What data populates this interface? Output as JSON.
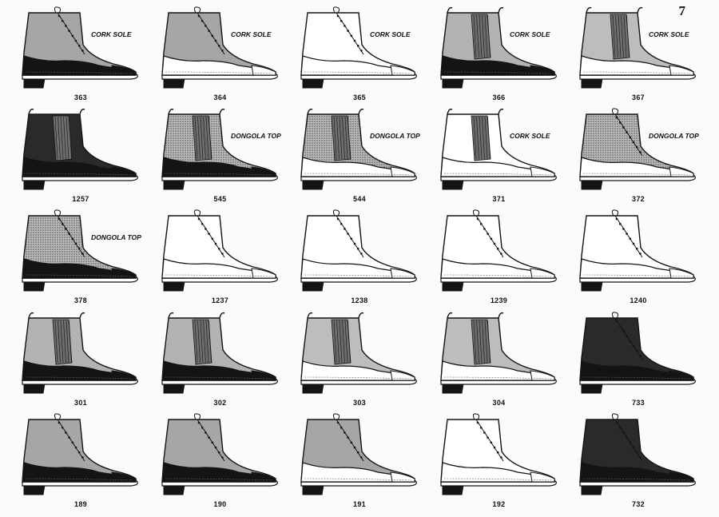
{
  "page_number": "7",
  "shoes": [
    {
      "number": "363",
      "style": "lace-dark-foxing",
      "stamp": "CORK SOLE"
    },
    {
      "number": "364",
      "style": "lace-light-foxing",
      "stamp": "CORK SOLE"
    },
    {
      "number": "365",
      "style": "lace-all-light",
      "stamp": "CORK SOLE"
    },
    {
      "number": "366",
      "style": "congress-dark",
      "stamp": "CORK SOLE"
    },
    {
      "number": "367",
      "style": "congress-light",
      "stamp": "CORK SOLE"
    },
    {
      "number": "1257",
      "style": "congress-all-dark",
      "stamp": ""
    },
    {
      "number": "545",
      "style": "congress-dark-stipple",
      "stamp": "DONGOLA TOP"
    },
    {
      "number": "544",
      "style": "congress-light-stipple",
      "stamp": "DONGOLA TOP"
    },
    {
      "number": "371",
      "style": "congress-all-light",
      "stamp": "CORK SOLE"
    },
    {
      "number": "372",
      "style": "lace-light-stipple",
      "stamp": "DONGOLA TOP"
    },
    {
      "number": "378",
      "style": "lace-dark-stipple",
      "stamp": "DONGOLA TOP"
    },
    {
      "number": "1237",
      "style": "lace-all-light",
      "stamp": ""
    },
    {
      "number": "1238",
      "style": "lace-all-light",
      "stamp": ""
    },
    {
      "number": "1239",
      "style": "lace-all-light",
      "stamp": ""
    },
    {
      "number": "1240",
      "style": "lace-all-light",
      "stamp": ""
    },
    {
      "number": "301",
      "style": "congress-dark",
      "stamp": ""
    },
    {
      "number": "302",
      "style": "congress-dark",
      "stamp": ""
    },
    {
      "number": "303",
      "style": "congress-light",
      "stamp": ""
    },
    {
      "number": "304",
      "style": "congress-light",
      "stamp": ""
    },
    {
      "number": "733",
      "style": "lace-all-dark",
      "stamp": ""
    },
    {
      "number": "189",
      "style": "lace-dark-foxing",
      "stamp": ""
    },
    {
      "number": "190",
      "style": "lace-dark-foxing",
      "stamp": ""
    },
    {
      "number": "191",
      "style": "lace-light-foxing",
      "stamp": ""
    },
    {
      "number": "192",
      "style": "lace-all-light",
      "stamp": ""
    },
    {
      "number": "732",
      "style": "lace-all-dark",
      "stamp": ""
    }
  ],
  "colors": {
    "ink": "#141414",
    "paper": "#fbfbfa",
    "gray_upper": "#a6a6a6",
    "stipple": "#8f8f8f"
  }
}
